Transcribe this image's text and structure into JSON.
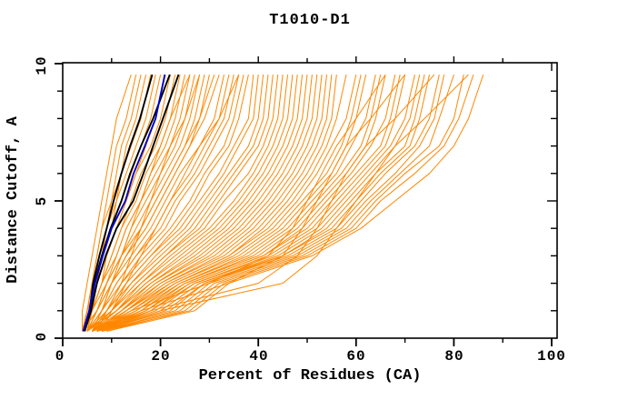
{
  "title": "T1010-D1",
  "axes": {
    "x": {
      "label": "Percent of Residues (CA)",
      "min": 0,
      "max": 100,
      "major_ticks": [
        0,
        20,
        40,
        60,
        80,
        100
      ],
      "minor_step": 10
    },
    "y": {
      "label": "Distance Cutoff, A",
      "min": 0,
      "max": 10,
      "major_ticks": [
        0,
        5,
        10
      ],
      "minor_step": 1
    }
  },
  "colors": {
    "predictions": "#ff8700",
    "reference_models": "#000000",
    "highlight_model": "#0000cd",
    "frame": "#000000",
    "background": "#ffffff"
  },
  "chart_data": {
    "type": "line",
    "title": "T1010-D1",
    "xlabel": "Percent of Residues (CA)",
    "ylabel": "Distance Cutoff, A",
    "xlim": [
      0,
      100
    ],
    "ylim": [
      0,
      10
    ],
    "grid": false,
    "legend": "none",
    "x_tick_labels": [
      "0",
      "20",
      "40",
      "60",
      "80",
      "100"
    ],
    "y_tick_labels": [
      "0",
      "5",
      "10"
    ],
    "cutoffs": [
      0.25,
      1,
      2,
      3,
      4,
      5,
      6,
      7,
      8,
      9.6
    ],
    "series_orange": [
      [
        4,
        5,
        6,
        7,
        8,
        9,
        10,
        11,
        13,
        15
      ],
      [
        4,
        5,
        6,
        7,
        8,
        10,
        11,
        12,
        14,
        16
      ],
      [
        5,
        6,
        7,
        8,
        9,
        10,
        12,
        13,
        15,
        17
      ],
      [
        4,
        5,
        6,
        8,
        9,
        11,
        12,
        14,
        16,
        18
      ],
      [
        5,
        6,
        7,
        8,
        10,
        11,
        13,
        15,
        17,
        19
      ],
      [
        4,
        5,
        7,
        8,
        10,
        12,
        14,
        16,
        18,
        20
      ],
      [
        5,
        6,
        8,
        9,
        11,
        13,
        15,
        17,
        19,
        21
      ],
      [
        4,
        6,
        7,
        9,
        11,
        13,
        15,
        18,
        20,
        22
      ],
      [
        5,
        6,
        8,
        10,
        12,
        14,
        16,
        19,
        21,
        23
      ],
      [
        4,
        6,
        8,
        10,
        12,
        15,
        17,
        20,
        22,
        24
      ],
      [
        5,
        7,
        9,
        11,
        13,
        16,
        18,
        21,
        23,
        25
      ],
      [
        4,
        6,
        8,
        11,
        13,
        16,
        19,
        22,
        24,
        26
      ],
      [
        5,
        7,
        9,
        12,
        14,
        17,
        20,
        23,
        25,
        27
      ],
      [
        4,
        6,
        9,
        12,
        15,
        18,
        21,
        24,
        26,
        28
      ],
      [
        5,
        7,
        10,
        13,
        16,
        19,
        22,
        25,
        27,
        29
      ],
      [
        4,
        7,
        10,
        13,
        17,
        20,
        23,
        26,
        28,
        30
      ],
      [
        5,
        7,
        9,
        12,
        16,
        19,
        22,
        25,
        28,
        31
      ],
      [
        4,
        7,
        10,
        13,
        17,
        20,
        23,
        26,
        29,
        32
      ],
      [
        5,
        8,
        10,
        14,
        18,
        21,
        24,
        28,
        31,
        33
      ],
      [
        6,
        8,
        11,
        15,
        19,
        22,
        26,
        29,
        32,
        34
      ],
      [
        5,
        8,
        11,
        15,
        20,
        23,
        27,
        30,
        33,
        35
      ],
      [
        6,
        9,
        12,
        16,
        21,
        24,
        28,
        31,
        34,
        36
      ],
      [
        5,
        8,
        12,
        17,
        22,
        26,
        29,
        33,
        35,
        37
      ],
      [
        6,
        9,
        13,
        18,
        23,
        27,
        30,
        34,
        36,
        38
      ],
      [
        5,
        9,
        13,
        18,
        24,
        28,
        32,
        35,
        38,
        39
      ],
      [
        6,
        10,
        14,
        19,
        25,
        29,
        33,
        36,
        39,
        40
      ],
      [
        5,
        9,
        14,
        20,
        26,
        30,
        34,
        38,
        40,
        41
      ],
      [
        6,
        10,
        15,
        21,
        27,
        31,
        35,
        39,
        41,
        42
      ],
      [
        5,
        10,
        15,
        21,
        28,
        32,
        36,
        40,
        42,
        43
      ],
      [
        6,
        11,
        16,
        22,
        29,
        33,
        38,
        41,
        43,
        44
      ],
      [
        5,
        10,
        16,
        23,
        30,
        35,
        39,
        42,
        44,
        45
      ],
      [
        6,
        11,
        17,
        24,
        31,
        36,
        40,
        43,
        45,
        46
      ],
      [
        5,
        11,
        17,
        25,
        32,
        37,
        41,
        44,
        46,
        47
      ],
      [
        7,
        12,
        18,
        26,
        33,
        38,
        42,
        45,
        47,
        48
      ],
      [
        5,
        11,
        18,
        27,
        34,
        39,
        43,
        46,
        48,
        49
      ],
      [
        7,
        12,
        19,
        28,
        35,
        40,
        44,
        47,
        49,
        50
      ],
      [
        6,
        12,
        19,
        29,
        36,
        41,
        45,
        48,
        50,
        51
      ],
      [
        7,
        13,
        20,
        30,
        37,
        42,
        46,
        49,
        51,
        52
      ],
      [
        6,
        12,
        20,
        31,
        38,
        43,
        47,
        50,
        52,
        53
      ],
      [
        7,
        13,
        21,
        32,
        39,
        44,
        48,
        51,
        53,
        54
      ],
      [
        6,
        13,
        21,
        33,
        40,
        45,
        49,
        52,
        54,
        55
      ],
      [
        6,
        13,
        22,
        34,
        41,
        46,
        50,
        53,
        55,
        56
      ],
      [
        7,
        14,
        22,
        34,
        42,
        47,
        51,
        54,
        56,
        58
      ],
      [
        6,
        14,
        23,
        35,
        43,
        48,
        52,
        55,
        58,
        60
      ],
      [
        7,
        15,
        23,
        36,
        44,
        49,
        54,
        57,
        59,
        61
      ],
      [
        6,
        15,
        24,
        37,
        45,
        50,
        55,
        58,
        60,
        62
      ],
      [
        7,
        16,
        24,
        38,
        46,
        51,
        56,
        59,
        62,
        64
      ],
      [
        6,
        16,
        25,
        39,
        47,
        52,
        57,
        61,
        63,
        65
      ],
      [
        7,
        17,
        25,
        40,
        48,
        53,
        58,
        62,
        64,
        66
      ],
      [
        6,
        17,
        26,
        41,
        49,
        54,
        59,
        63,
        66,
        68
      ],
      [
        7,
        18,
        26,
        41,
        50,
        55,
        60,
        65,
        67,
        69
      ],
      [
        8,
        18,
        27,
        42,
        51,
        56,
        61,
        66,
        68,
        70
      ],
      [
        7,
        19,
        27,
        43,
        52,
        57,
        62,
        67,
        70,
        72
      ],
      [
        8,
        20,
        28,
        44,
        53,
        58,
        63,
        68,
        71,
        73
      ],
      [
        7,
        20,
        28,
        45,
        54,
        59,
        64,
        70,
        72,
        74
      ],
      [
        8,
        21,
        29,
        45,
        55,
        60,
        65,
        71,
        73,
        75
      ],
      [
        7,
        22,
        29,
        46,
        56,
        61,
        66,
        72,
        75,
        77
      ],
      [
        8,
        23,
        30,
        47,
        57,
        62,
        68,
        73,
        76,
        78
      ],
      [
        8,
        24,
        31,
        48,
        58,
        63,
        69,
        75,
        77,
        80
      ],
      [
        9,
        25,
        32,
        49,
        59,
        64,
        70,
        77,
        80,
        82
      ],
      [
        8,
        26,
        33,
        50,
        60,
        65,
        72,
        78,
        81,
        84
      ],
      [
        9,
        27,
        34,
        51,
        61,
        68,
        75,
        80,
        83,
        86
      ],
      [
        6,
        14,
        30,
        42,
        47,
        50,
        53,
        56,
        60,
        66
      ],
      [
        7,
        16,
        34,
        45,
        49,
        52,
        55,
        58,
        63,
        70
      ],
      [
        6,
        18,
        40,
        48,
        52,
        55,
        58,
        62,
        68,
        76
      ],
      [
        8,
        20,
        45,
        52,
        56,
        60,
        64,
        68,
        74,
        83
      ],
      [
        4,
        4,
        5,
        6,
        7,
        8,
        9,
        10,
        11,
        14
      ],
      [
        7,
        9,
        12,
        14,
        16,
        18,
        20,
        22,
        25,
        28
      ],
      [
        6,
        8,
        10,
        12,
        14,
        16,
        18,
        20,
        22,
        26
      ],
      [
        8,
        10,
        13,
        16,
        19,
        22,
        25,
        28,
        32,
        36
      ]
    ],
    "series_black": [
      [
        4.3,
        5.5,
        6.2,
        7.5,
        9,
        10.4,
        12,
        13.8,
        15.8,
        18.3
      ],
      [
        4.4,
        5.6,
        6.5,
        8,
        9.8,
        12,
        13.8,
        16,
        18.5,
        21.9
      ],
      [
        4.5,
        5.8,
        7,
        8.8,
        11,
        14.4,
        16.5,
        18.5,
        20.5,
        23.7
      ]
    ],
    "series_blue": [
      [
        4.2,
        5.4,
        6.6,
        8.2,
        10,
        12.8,
        14.5,
        16.8,
        19,
        20.9
      ]
    ]
  }
}
